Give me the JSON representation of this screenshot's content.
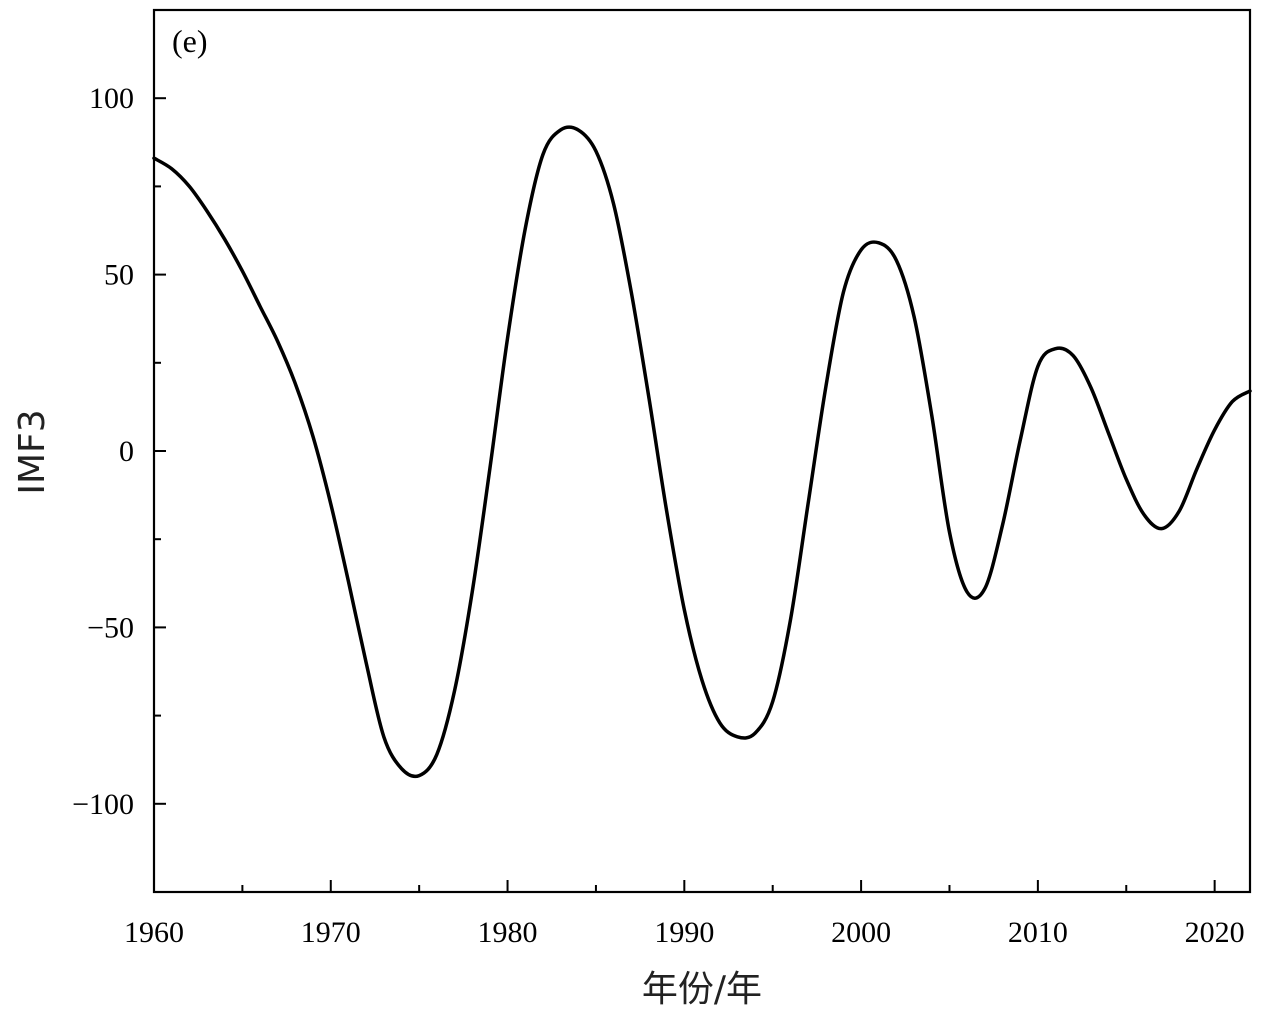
{
  "chart_data": {
    "type": "line",
    "panel_label": "(e)",
    "xlabel": "年份/年",
    "ylabel": "IMF3",
    "xlim": [
      1960,
      2022
    ],
    "ylim": [
      -125,
      125
    ],
    "x_ticks": [
      1960,
      1970,
      1980,
      1990,
      2000,
      2010,
      2020
    ],
    "x_tick_labels": [
      "1960",
      "1970",
      "1980",
      "1990",
      "2000",
      "2010",
      "2020"
    ],
    "x_minor_ticks": [
      1965,
      1975,
      1985,
      1995,
      2005,
      2015
    ],
    "y_ticks": [
      100,
      50,
      0,
      -50,
      -100
    ],
    "y_tick_labels": [
      "100",
      "50",
      "0",
      "−50",
      "−100"
    ],
    "y_minor_ticks": [
      75,
      25,
      -25,
      -75
    ],
    "grid": false,
    "series": [
      {
        "color": "#000000",
        "x": [
          1960,
          1961,
          1962,
          1963,
          1964,
          1965,
          1966,
          1967,
          1968,
          1969,
          1970,
          1971,
          1972,
          1973,
          1974,
          1975,
          1976,
          1977,
          1978,
          1979,
          1980,
          1981,
          1982,
          1983,
          1984,
          1985,
          1986,
          1987,
          1988,
          1989,
          1990,
          1991,
          1992,
          1993,
          1994,
          1995,
          1996,
          1997,
          1998,
          1999,
          2000,
          2001,
          2002,
          2003,
          2004,
          2005,
          2006,
          2007,
          2008,
          2009,
          2010,
          2011,
          2012,
          2013,
          2014,
          2015,
          2016,
          2017,
          2018,
          2019,
          2020,
          2021,
          2022
        ],
        "y": [
          83,
          80,
          75,
          68,
          60,
          51,
          41,
          31,
          19,
          4,
          -15,
          -37,
          -60,
          -81,
          -90,
          -92,
          -86,
          -68,
          -40,
          -5,
          32,
          63,
          84,
          91,
          91,
          85,
          70,
          45,
          15,
          -17,
          -45,
          -65,
          -77,
          -81,
          -80,
          -71,
          -48,
          -15,
          18,
          45,
          57,
          59,
          54,
          38,
          10,
          -23,
          -40,
          -39,
          -21,
          3,
          24,
          29,
          27,
          18,
          5,
          -8,
          -18,
          -22,
          -17,
          -5,
          6,
          14,
          17
        ]
      }
    ]
  }
}
